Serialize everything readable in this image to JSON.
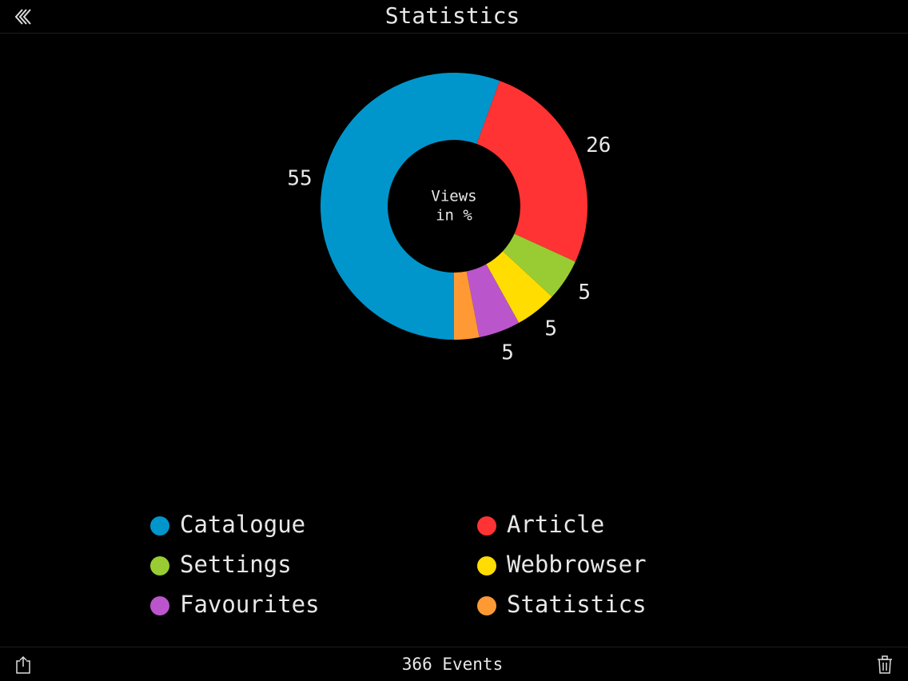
{
  "header": {
    "title": "Statistics"
  },
  "chart_data": {
    "type": "pie",
    "center_label": [
      "Views",
      "in %"
    ],
    "categories": [
      "Catalogue",
      "Article",
      "Settings",
      "Webbrowser",
      "Favourites",
      "Statistics"
    ],
    "values": [
      55,
      26,
      5,
      5,
      5,
      3
    ],
    "value_labels": [
      "55",
      "26",
      "5",
      "5",
      "5",
      null
    ],
    "colors": [
      "#0096cc",
      "#ff3333",
      "#99cc33",
      "#ffdd00",
      "#bb55cc",
      "#ff9933"
    ]
  },
  "footer": {
    "status": "366 Events"
  }
}
